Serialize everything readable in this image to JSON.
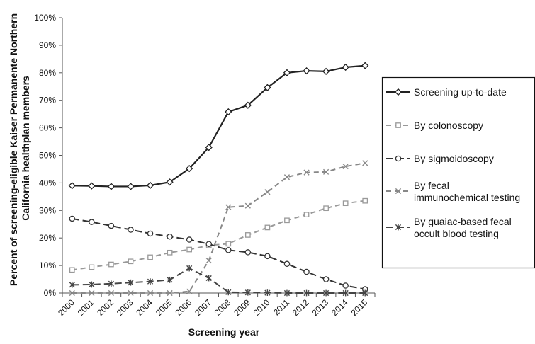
{
  "chart_data": {
    "type": "line",
    "xlabel": "Screening year",
    "ylabel_lines": [
      "Percent of screening-eligible Kaiser Permanente Northern",
      "California healthplan members"
    ],
    "x": [
      "2000",
      "2001",
      "2002",
      "2003",
      "2004",
      "2005",
      "2006",
      "2007",
      "2008",
      "2009",
      "2010",
      "2011",
      "2012",
      "2013",
      "2014",
      "2015"
    ],
    "yticks": [
      "0%",
      "10%",
      "20%",
      "30%",
      "40%",
      "50%",
      "60%",
      "70%",
      "80%",
      "90%",
      "100%"
    ],
    "ylim": [
      0,
      100
    ],
    "legend_position": "right",
    "series": [
      {
        "name_lines": [
          "Screening up-to-date"
        ],
        "values": [
          39,
          38.9,
          38.7,
          38.7,
          39.1,
          40.3,
          45.2,
          52.9,
          65.8,
          68.2,
          74.6,
          80,
          80.7,
          80.5,
          82,
          82.6
        ],
        "color": "#222222",
        "dash": "solid",
        "marker": "diamond"
      },
      {
        "name_lines": [
          "By colonoscopy"
        ],
        "values": [
          8.4,
          9.4,
          10.4,
          11.5,
          13,
          14.7,
          15.8,
          17.3,
          17.9,
          21.1,
          23.8,
          26.4,
          28.5,
          30.8,
          32.6,
          33.5
        ],
        "color": "#999999",
        "dash": "dash",
        "marker": "square"
      },
      {
        "name_lines": [
          "By sigmoidoscopy"
        ],
        "values": [
          27,
          25.8,
          24.4,
          23,
          21.6,
          20.5,
          19.4,
          17.8,
          15.6,
          14.8,
          13.4,
          10.6,
          7.7,
          5,
          2.7,
          1.4
        ],
        "color": "#333333",
        "dash": "longdash",
        "marker": "circle"
      },
      {
        "name_lines": [
          "By fecal",
          "immunochemical testing"
        ],
        "values": [
          0,
          0,
          0,
          0,
          0,
          0,
          0.6,
          11.8,
          31.2,
          31.7,
          36.7,
          42.1,
          43.8,
          44,
          46,
          47.2
        ],
        "color": "#888888",
        "dash": "dash",
        "marker": "x"
      },
      {
        "name_lines": [
          "By guaiac-based fecal",
          "occult blood testing"
        ],
        "values": [
          3,
          3.1,
          3.4,
          3.8,
          4.2,
          4.8,
          9,
          5.4,
          0.3,
          0.2,
          0.1,
          0,
          0,
          0,
          0,
          0
        ],
        "color": "#444444",
        "dash": "longdash",
        "marker": "star"
      }
    ]
  }
}
